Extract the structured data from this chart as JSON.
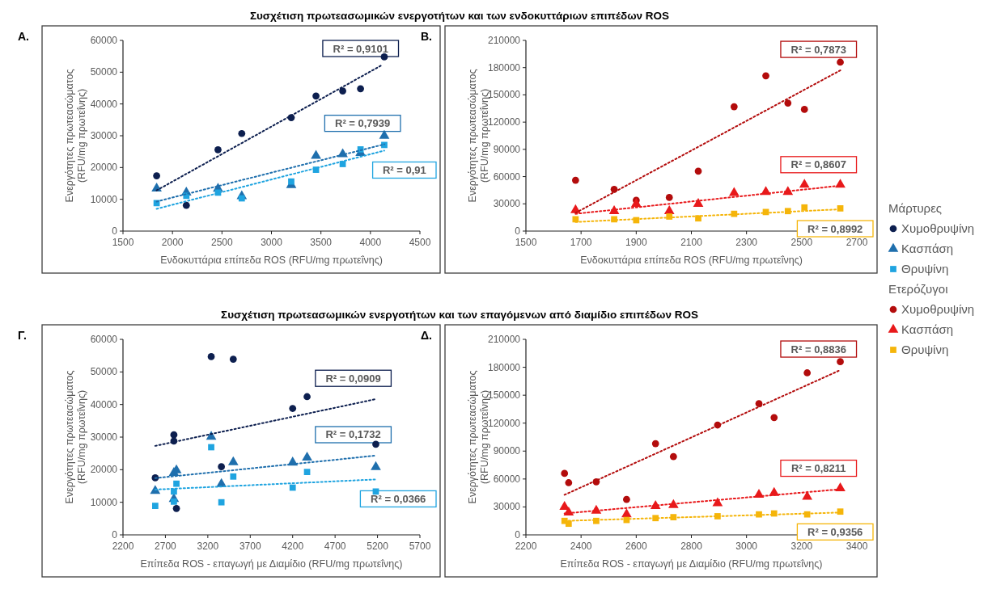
{
  "chart_data": [
    {
      "type": "scatter",
      "title": "Συσχέτιση πρωτεασωμικών ενεργοτήτων και των ενδοκυττάριων επιπέδων ROS",
      "xlabel": "Ενδοκυττάρια επίπεδα ROS (RFU/mg πρωτεΐνης)",
      "ylabel": "Ενεργότητες πρωτεασώματος\n(RFU/mg πρωτεΐνης)",
      "xlim": [
        1500,
        4500
      ],
      "xticks": [
        1500,
        2000,
        2500,
        3000,
        3500,
        4000,
        4500
      ],
      "ylim": [
        0,
        60000
      ],
      "yticks": [
        0,
        10000,
        20000,
        30000,
        40000,
        50000,
        60000
      ],
      "grid": false,
      "legend": "right",
      "legend_title": "Μάρτυρες",
      "annotations": [
        "Α.",
        "R² = 0,9101",
        "R² = 0,7939",
        "R² = 0,91"
      ],
      "series": [
        {
          "name": "Χυμοθρυψίνη",
          "color": "#0d1f4f",
          "marker": "circle",
          "x": [
            1840,
            2140,
            2460,
            2700,
            3200,
            3450,
            3720,
            3900,
            4140
          ],
          "values": [
            17400,
            8100,
            25600,
            30700,
            35700,
            42500,
            44100,
            44800,
            54800
          ]
        },
        {
          "name": "Κασπάση",
          "color": "#1f6fad",
          "marker": "triangle",
          "x": [
            1840,
            2140,
            2460,
            2700,
            3200,
            3450,
            3720,
            3900,
            4140
          ],
          "values": [
            13400,
            12100,
            13300,
            11000,
            14500,
            23700,
            24200,
            24600,
            30000
          ]
        },
        {
          "name": "Θρυψίνη",
          "color": "#1fa4e0",
          "marker": "square",
          "x": [
            1840,
            2140,
            2460,
            2700,
            3200,
            3450,
            3720,
            3900,
            4140
          ],
          "values": [
            8800,
            11100,
            12100,
            10300,
            15600,
            19300,
            21100,
            25700,
            27100
          ]
        },
        {
          "type": "line",
          "color": "#0d1f4f",
          "line_style": "dotted",
          "marker": "none",
          "x": [
            1840,
            4120
          ],
          "values": [
            12800,
            52300
          ]
        },
        {
          "type": "line",
          "color": "#1f6fad",
          "line_style": "dotted",
          "marker": "none",
          "x": [
            1840,
            4140
          ],
          "values": [
            9300,
            27300
          ]
        },
        {
          "type": "line",
          "color": "#1fa4e0",
          "line_style": "dotted",
          "marker": "none",
          "x": [
            1840,
            4140
          ],
          "values": [
            7000,
            25300
          ]
        }
      ]
    },
    {
      "type": "scatter",
      "xlabel": "Ενδοκυττάρια επίπεδα ROS (RFU/mg πρωτεΐνης)",
      "ylabel": "Ενεργότητες πρωτεασώματος\n(RFU/mg πρωτεΐνης)",
      "xlim": [
        1500,
        2700
      ],
      "xticks": [
        1500,
        1700,
        1900,
        2100,
        2300,
        2500,
        2700
      ],
      "ylim": [
        0,
        210000
      ],
      "yticks": [
        0,
        30000,
        60000,
        90000,
        120000,
        150000,
        180000,
        210000
      ],
      "grid": false,
      "legend": "right",
      "legend_title": "Ετερόζυγοι",
      "annotations": [
        "Β.",
        "R² = 0,7873",
        "R² = 0,8607",
        "R² = 0,8992"
      ],
      "series": [
        {
          "name": "Χυμοθρυψίνη",
          "color": "#b30c0c",
          "marker": "circle",
          "x": [
            1680,
            1820,
            1900,
            2020,
            2125,
            2255,
            2370,
            2450,
            2510,
            2640
          ],
          "values": [
            56000,
            46000,
            34000,
            37000,
            66000,
            137000,
            171000,
            141000,
            134000,
            186000
          ]
        },
        {
          "name": "Κασπάση",
          "color": "#e8191b",
          "marker": "triangle",
          "x": [
            1680,
            1820,
            1900,
            2020,
            2125,
            2255,
            2370,
            2450,
            2510,
            2640
          ],
          "values": [
            23000,
            22000,
            30000,
            22000,
            30000,
            42000,
            43000,
            43000,
            51000,
            51000
          ]
        },
        {
          "name": "Θρυψίνη",
          "color": "#f5b50a",
          "marker": "square",
          "x": [
            1680,
            1820,
            1900,
            2020,
            2125,
            2255,
            2370,
            2450,
            2510,
            2640
          ],
          "values": [
            13000,
            13000,
            12000,
            16000,
            14000,
            19000,
            21000,
            22000,
            26000,
            25000
          ]
        },
        {
          "type": "line",
          "color": "#b30c0c",
          "line_style": "dotted",
          "marker": "none",
          "x": [
            1680,
            2640
          ],
          "values": [
            20000,
            177000
          ]
        },
        {
          "type": "line",
          "color": "#e8191b",
          "line_style": "dotted",
          "marker": "none",
          "x": [
            1680,
            2640
          ],
          "values": [
            19000,
            50000
          ]
        },
        {
          "type": "line",
          "color": "#f5b50a",
          "line_style": "dotted",
          "marker": "none",
          "x": [
            1680,
            2640
          ],
          "values": [
            10000,
            24000
          ]
        }
      ]
    },
    {
      "type": "scatter",
      "title": "Συσχέτιση πρωτεασωμικών ενεργοτήτων και των επαγόμενων από διαμίδιο επιπέδων ROS",
      "xlabel": "Επίπεδα ROS - επαγωγή με Διαμίδιο (RFU/mg πρωτεΐνης)",
      "ylabel": "Ενεργότητες πρωτεασώματος\n(RFU/mg πρωτεΐνης)",
      "xlim": [
        2200,
        5700
      ],
      "xticks": [
        2200,
        2700,
        3200,
        3700,
        4200,
        4700,
        5200,
        5700
      ],
      "ylim": [
        0,
        60000
      ],
      "yticks": [
        0,
        10000,
        20000,
        30000,
        40000,
        50000,
        60000
      ],
      "grid": false,
      "legend": false,
      "annotations": [
        "Γ.",
        "R² = 0,0909",
        "R² = 0,1732",
        "R² = 0,0366"
      ],
      "series": [
        {
          "color": "#0d1f4f",
          "marker": "circle",
          "x": [
            2580,
            2800,
            2800,
            2830,
            3240,
            3360,
            3500,
            4200,
            4370,
            5180
          ],
          "values": [
            17500,
            30700,
            28800,
            8100,
            54700,
            20900,
            53900,
            38800,
            42400,
            27800
          ]
        },
        {
          "color": "#1f6fad",
          "marker": "triangle",
          "x": [
            2580,
            2800,
            2800,
            2830,
            3240,
            3360,
            3500,
            4200,
            4370,
            5180
          ],
          "values": [
            13500,
            19000,
            11000,
            19800,
            30100,
            15600,
            22300,
            22200,
            23700,
            20800
          ]
        },
        {
          "color": "#1fa4e0",
          "marker": "square",
          "x": [
            2580,
            2800,
            2800,
            2830,
            3240,
            3360,
            3500,
            4200,
            4370,
            5180
          ],
          "values": [
            8900,
            13300,
            10200,
            15700,
            26900,
            10000,
            17900,
            14500,
            19300,
            13300
          ]
        },
        {
          "type": "line",
          "color": "#0d1f4f",
          "line_style": "dotted",
          "marker": "none",
          "x": [
            2580,
            5170
          ],
          "values": [
            27300,
            41600
          ]
        },
        {
          "type": "line",
          "color": "#1f6fad",
          "line_style": "dotted",
          "marker": "none",
          "x": [
            2580,
            5170
          ],
          "values": [
            17400,
            24300
          ]
        },
        {
          "type": "line",
          "color": "#1fa4e0",
          "line_style": "dotted",
          "marker": "none",
          "x": [
            2580,
            5170
          ],
          "values": [
            13900,
            17000
          ]
        }
      ]
    },
    {
      "type": "scatter",
      "xlabel": "Επίπεδα ROS - επαγωγή με Διαμίδιο (RFU/mg πρωτεΐνης)",
      "ylabel": "Ενεργότητες πρωτεασώματος\n(RFU/mg πρωτεΐνης)",
      "xlim": [
        2200,
        3400
      ],
      "xticks": [
        2200,
        2400,
        2600,
        2800,
        3000,
        3200,
        3400
      ],
      "ylim": [
        0,
        210000
      ],
      "yticks": [
        0,
        30000,
        60000,
        90000,
        120000,
        150000,
        180000,
        210000
      ],
      "grid": false,
      "legend": false,
      "annotations": [
        "Δ.",
        "R² = 0,8836",
        "R² = 0,8211",
        "R² = 0,9356"
      ],
      "series": [
        {
          "color": "#b30c0c",
          "marker": "circle",
          "x": [
            2340,
            2355,
            2455,
            2565,
            2670,
            2735,
            2895,
            3045,
            3100,
            3220,
            3340
          ],
          "values": [
            66000,
            56000,
            57000,
            38000,
            98000,
            84000,
            118000,
            141000,
            126000,
            174000,
            186000
          ]
        },
        {
          "color": "#e8191b",
          "marker": "triangle",
          "x": [
            2340,
            2355,
            2455,
            2565,
            2670,
            2735,
            2895,
            3045,
            3100,
            3220,
            3340
          ],
          "values": [
            30000,
            24000,
            26000,
            22000,
            31000,
            32000,
            34000,
            43000,
            45000,
            41000,
            50000
          ]
        },
        {
          "color": "#f5b50a",
          "marker": "square",
          "x": [
            2340,
            2355,
            2455,
            2565,
            2670,
            2735,
            2895,
            3045,
            3100,
            3220,
            3340
          ],
          "values": [
            15000,
            12000,
            15000,
            16000,
            18000,
            19000,
            20000,
            22000,
            23000,
            22000,
            25000
          ]
        },
        {
          "type": "line",
          "color": "#b30c0c",
          "line_style": "dotted",
          "marker": "none",
          "x": [
            2340,
            3340
          ],
          "values": [
            43000,
            177000
          ]
        },
        {
          "type": "line",
          "color": "#e8191b",
          "line_style": "dotted",
          "marker": "none",
          "x": [
            2340,
            3340
          ],
          "values": [
            23000,
            49000
          ]
        },
        {
          "type": "line",
          "color": "#f5b50a",
          "line_style": "dotted",
          "marker": "none",
          "x": [
            2340,
            3340
          ],
          "values": [
            15000,
            24000
          ]
        }
      ]
    }
  ]
}
